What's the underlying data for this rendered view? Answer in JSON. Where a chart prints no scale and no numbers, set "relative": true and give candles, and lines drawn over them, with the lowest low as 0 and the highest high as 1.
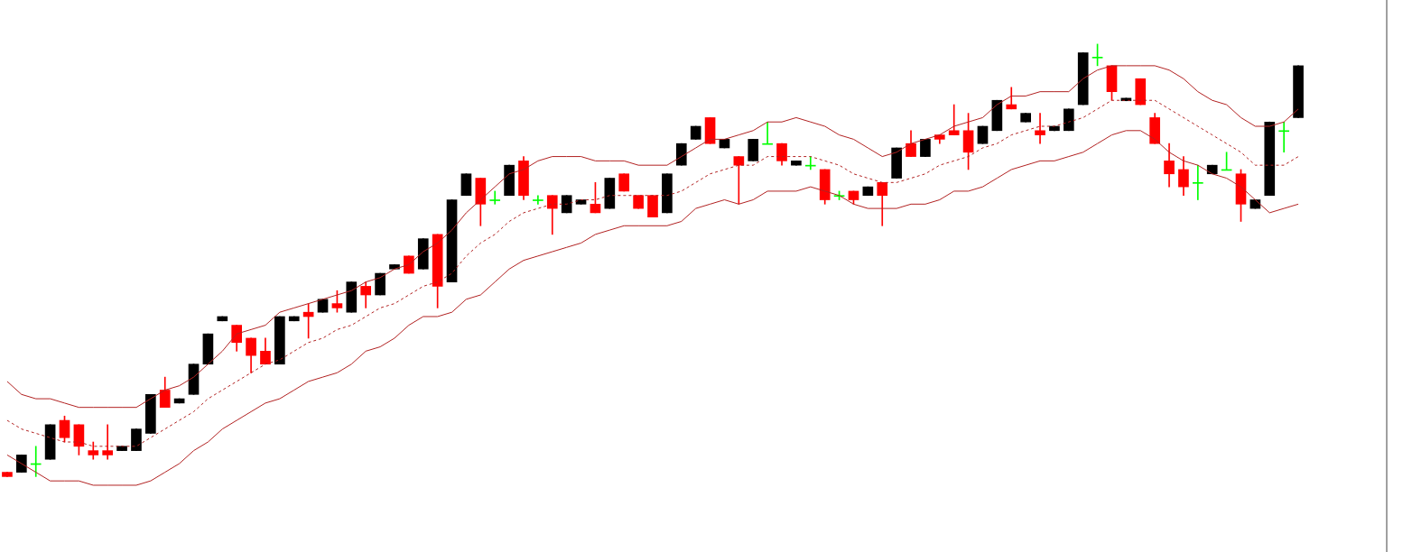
{
  "chart_data": {
    "type": "candlestick",
    "relative": true,
    "tick_labels": false,
    "marker": "none",
    "categories": [
      null,
      null,
      null,
      null,
      null,
      null,
      null,
      null,
      null,
      null,
      null,
      null,
      null,
      null,
      null,
      null,
      null,
      null,
      null,
      null,
      null,
      null,
      null,
      null,
      null,
      null,
      null,
      null,
      null,
      null,
      null,
      null,
      null,
      null,
      null,
      null,
      null,
      null,
      null,
      null,
      null,
      null,
      null,
      null,
      null,
      null,
      null,
      null,
      null,
      null,
      null,
      null,
      null,
      null,
      null,
      null,
      null,
      null,
      null,
      null,
      null,
      null,
      null,
      null,
      null,
      null,
      null,
      null,
      null,
      null,
      null,
      null,
      null,
      null,
      null,
      null,
      null,
      null,
      null,
      null,
      null,
      null,
      null,
      null,
      null,
      null,
      null,
      null,
      null,
      null,
      null
    ],
    "ohlc": [
      [
        0.01,
        0.01,
        0,
        0
      ],
      [
        0.01,
        0.05,
        0.01,
        0.05
      ],
      [
        0.03,
        0.07,
        0,
        0.03
      ],
      [
        0.04,
        0.12,
        0.04,
        0.12
      ],
      [
        0.13,
        0.14,
        0.08,
        0.09
      ],
      [
        0.12,
        0.12,
        0.05,
        0.07
      ],
      [
        0.06,
        0.08,
        0.04,
        0.05
      ],
      [
        0.06,
        0.12,
        0.04,
        0.05
      ],
      [
        0.06,
        0.07,
        0.06,
        0.07
      ],
      [
        0.06,
        0.11,
        0.06,
        0.11
      ],
      [
        0.1,
        0.19,
        0.1,
        0.19
      ],
      [
        0.2,
        0.23,
        0.16,
        0.16
      ],
      [
        0.17,
        0.18,
        0.17,
        0.18
      ],
      [
        0.19,
        0.26,
        0.19,
        0.26
      ],
      [
        0.26,
        0.33,
        0.26,
        0.33
      ],
      [
        0.36,
        0.37,
        0.36,
        0.37
      ],
      [
        0.35,
        0.35,
        0.29,
        0.31
      ],
      [
        0.32,
        0.32,
        0.24,
        0.28
      ],
      [
        0.29,
        0.32,
        0.26,
        0.26
      ],
      [
        0.26,
        0.37,
        0.26,
        0.37
      ],
      [
        0.36,
        0.37,
        0.36,
        0.37
      ],
      [
        0.38,
        0.4,
        0.32,
        0.37
      ],
      [
        0.38,
        0.41,
        0.38,
        0.41
      ],
      [
        0.4,
        0.43,
        0.38,
        0.39
      ],
      [
        0.38,
        0.45,
        0.38,
        0.45
      ],
      [
        0.44,
        0.45,
        0.39,
        0.42
      ],
      [
        0.42,
        0.47,
        0.42,
        0.47
      ],
      [
        0.48,
        0.49,
        0.48,
        0.49
      ],
      [
        0.51,
        0.51,
        0.47,
        0.47
      ],
      [
        0.48,
        0.55,
        0.48,
        0.55
      ],
      [
        0.56,
        0.56,
        0.39,
        0.44
      ],
      [
        0.45,
        0.64,
        0.45,
        0.64
      ],
      [
        0.65,
        0.7,
        0.65,
        0.7
      ],
      [
        0.69,
        0.69,
        0.58,
        0.63
      ],
      [
        0.64,
        0.66,
        0.63,
        0.64
      ],
      [
        0.65,
        0.72,
        0.65,
        0.72
      ],
      [
        0.73,
        0.74,
        0.64,
        0.65
      ],
      [
        0.64,
        0.65,
        0.63,
        0.64
      ],
      [
        0.65,
        0.65,
        0.56,
        0.62
      ],
      [
        0.61,
        0.65,
        0.61,
        0.65
      ],
      [
        0.63,
        0.64,
        0.63,
        0.64
      ],
      [
        0.63,
        0.68,
        0.61,
        0.61
      ],
      [
        0.62,
        0.69,
        0.62,
        0.69
      ],
      [
        0.7,
        0.7,
        0.66,
        0.66
      ],
      [
        0.65,
        0.65,
        0.62,
        0.62
      ],
      [
        0.65,
        0.65,
        0.6,
        0.6
      ],
      [
        0.61,
        0.7,
        0.61,
        0.7
      ],
      [
        0.72,
        0.77,
        0.72,
        0.77
      ],
      [
        0.78,
        0.81,
        0.78,
        0.81
      ],
      [
        0.83,
        0.83,
        0.77,
        0.77
      ],
      [
        0.76,
        0.78,
        0.76,
        0.78
      ],
      [
        0.74,
        0.74,
        0.63,
        0.72
      ],
      [
        0.73,
        0.78,
        0.73,
        0.78
      ],
      [
        0.77,
        0.82,
        0.77,
        0.77
      ],
      [
        0.77,
        0.77,
        0.72,
        0.73
      ],
      [
        0.72,
        0.73,
        0.72,
        0.73
      ],
      [
        0.72,
        0.74,
        0.71,
        0.72
      ],
      [
        0.71,
        0.71,
        0.63,
        0.64
      ],
      [
        0.65,
        0.66,
        0.64,
        0.65
      ],
      [
        0.66,
        0.66,
        0.63,
        0.64
      ],
      [
        0.65,
        0.67,
        0.65,
        0.67
      ],
      [
        0.68,
        0.68,
        0.58,
        0.65
      ],
      [
        0.69,
        0.76,
        0.69,
        0.76
      ],
      [
        0.77,
        0.8,
        0.74,
        0.74
      ],
      [
        0.74,
        0.78,
        0.74,
        0.78
      ],
      [
        0.79,
        0.79,
        0.77,
        0.78
      ],
      [
        0.8,
        0.86,
        0.79,
        0.79
      ],
      [
        0.8,
        0.84,
        0.71,
        0.75
      ],
      [
        0.77,
        0.81,
        0.77,
        0.81
      ],
      [
        0.8,
        0.87,
        0.8,
        0.87
      ],
      [
        0.86,
        0.9,
        0.85,
        0.85
      ],
      [
        0.82,
        0.84,
        0.82,
        0.84
      ],
      [
        0.8,
        0.84,
        0.77,
        0.79
      ],
      [
        0.8,
        0.81,
        0.8,
        0.81
      ],
      [
        0.8,
        0.85,
        0.8,
        0.85
      ],
      [
        0.86,
        0.98,
        0.86,
        0.98
      ],
      [
        0.97,
        1,
        0.95,
        0.97
      ],
      [
        0.95,
        0.95,
        0.87,
        0.89
      ],
      [
        0.869,
        0.875,
        0.869,
        0.875
      ],
      [
        0.92,
        0.92,
        0.86,
        0.86
      ],
      [
        0.83,
        0.84,
        0.77,
        0.77
      ],
      [
        0.73,
        0.77,
        0.67,
        0.7
      ],
      [
        0.71,
        0.74,
        0.65,
        0.67
      ],
      [
        0.68,
        0.72,
        0.64,
        0.68
      ],
      [
        0.7,
        0.72,
        0.7,
        0.72
      ],
      [
        0.71,
        0.75,
        0.71,
        0.71
      ],
      [
        0.7,
        0.71,
        0.59,
        0.63
      ],
      [
        0.62,
        0.64,
        0.62,
        0.64
      ],
      [
        0.65,
        0.82,
        0.65,
        0.82
      ],
      [
        0.8,
        0.82,
        0.75,
        0.8
      ],
      [
        0.83,
        0.95,
        0.83,
        0.95
      ]
    ],
    "colors": [
      "#ff0000",
      "#000000",
      "#00ff00",
      "#000000",
      "#ff0000",
      "#ff0000",
      "#ff0000",
      "#ff0000",
      "#000000",
      "#000000",
      "#000000",
      "#ff0000",
      "#000000",
      "#000000",
      "#000000",
      "#000000",
      "#ff0000",
      "#ff0000",
      "#ff0000",
      "#000000",
      "#000000",
      "#ff0000",
      "#000000",
      "#ff0000",
      "#000000",
      "#ff0000",
      "#000000",
      "#000000",
      "#ff0000",
      "#000000",
      "#ff0000",
      "#000000",
      "#000000",
      "#ff0000",
      "#00ff00",
      "#000000",
      "#ff0000",
      "#00ff00",
      "#ff0000",
      "#000000",
      "#000000",
      "#ff0000",
      "#000000",
      "#ff0000",
      "#ff0000",
      "#ff0000",
      "#000000",
      "#000000",
      "#000000",
      "#ff0000",
      "#000000",
      "#ff0000",
      "#000000",
      "#00ff00",
      "#ff0000",
      "#000000",
      "#00ff00",
      "#ff0000",
      "#00ff00",
      "#ff0000",
      "#000000",
      "#ff0000",
      "#000000",
      "#ff0000",
      "#000000",
      "#ff0000",
      "#ff0000",
      "#ff0000",
      "#000000",
      "#000000",
      "#ff0000",
      "#000000",
      "#ff0000",
      "#000000",
      "#000000",
      "#000000",
      "#00ff00",
      "#ff0000",
      "#000000",
      "#ff0000",
      "#ff0000",
      "#ff0000",
      "#ff0000",
      "#00ff00",
      "#000000",
      "#00ff00",
      "#ff0000",
      "#000000",
      "#000000",
      "#00ff00",
      "#000000"
    ],
    "series": [
      {
        "type": "line",
        "color": "#b22222",
        "line_style": "solid",
        "values": [
          0.22,
          0.19,
          0.18,
          0.18,
          0.17,
          0.16,
          0.16,
          0.16,
          0.16,
          0.16,
          0.18,
          0.2,
          0.21,
          0.23,
          0.26,
          0.29,
          0.33,
          0.34,
          0.35,
          0.38,
          0.39,
          0.4,
          0.41,
          0.42,
          0.43,
          0.45,
          0.46,
          0.48,
          0.49,
          0.52,
          0.54,
          0.57,
          0.61,
          0.64,
          0.67,
          0.7,
          0.71,
          0.73,
          0.74,
          0.74,
          0.74,
          0.73,
          0.73,
          0.73,
          0.72,
          0.72,
          0.72,
          0.74,
          0.76,
          0.78,
          0.78,
          0.79,
          0.8,
          0.82,
          0.82,
          0.83,
          0.82,
          0.81,
          0.79,
          0.78,
          0.76,
          0.74,
          0.75,
          0.77,
          0.78,
          0.79,
          0.81,
          0.82,
          0.83,
          0.86,
          0.88,
          0.88,
          0.89,
          0.89,
          0.89,
          0.92,
          0.94,
          0.95,
          0.95,
          0.95,
          0.95,
          0.94,
          0.92,
          0.89,
          0.87,
          0.86,
          0.83,
          0.81,
          0.81,
          0.82,
          0.85
        ]
      },
      {
        "type": "line",
        "color": "#b22222",
        "line_style": "dashed",
        "values": [
          0.13,
          0.11,
          0.1,
          0.09,
          0.08,
          0.08,
          0.07,
          0.07,
          0.07,
          0.07,
          0.09,
          0.11,
          0.13,
          0.15,
          0.18,
          0.2,
          0.22,
          0.24,
          0.26,
          0.27,
          0.29,
          0.31,
          0.32,
          0.34,
          0.35,
          0.37,
          0.39,
          0.4,
          0.42,
          0.44,
          0.45,
          0.47,
          0.51,
          0.54,
          0.56,
          0.59,
          0.61,
          0.62,
          0.63,
          0.63,
          0.64,
          0.64,
          0.65,
          0.65,
          0.65,
          0.65,
          0.65,
          0.66,
          0.68,
          0.7,
          0.71,
          0.72,
          0.72,
          0.74,
          0.74,
          0.74,
          0.74,
          0.73,
          0.72,
          0.7,
          0.69,
          0.68,
          0.68,
          0.69,
          0.7,
          0.72,
          0.73,
          0.74,
          0.76,
          0.77,
          0.79,
          0.8,
          0.81,
          0.81,
          0.82,
          0.83,
          0.85,
          0.87,
          0.87,
          0.87,
          0.87,
          0.85,
          0.83,
          0.81,
          0.79,
          0.77,
          0.75,
          0.72,
          0.72,
          0.72,
          0.74
        ]
      },
      {
        "type": "line",
        "color": "#b22222",
        "line_style": "solid",
        "values": [
          0.05,
          0.03,
          0.01,
          -0.01,
          -0.01,
          -0.01,
          -0.02,
          -0.02,
          -0.02,
          -0.02,
          -0.01,
          0.01,
          0.03,
          0.06,
          0.08,
          0.11,
          0.13,
          0.15,
          0.17,
          0.18,
          0.2,
          0.22,
          0.23,
          0.24,
          0.26,
          0.29,
          0.3,
          0.32,
          0.35,
          0.37,
          0.37,
          0.38,
          0.41,
          0.42,
          0.45,
          0.48,
          0.5,
          0.51,
          0.52,
          0.53,
          0.54,
          0.56,
          0.57,
          0.58,
          0.58,
          0.58,
          0.58,
          0.59,
          0.62,
          0.63,
          0.64,
          0.63,
          0.64,
          0.66,
          0.66,
          0.66,
          0.67,
          0.66,
          0.65,
          0.63,
          0.62,
          0.62,
          0.62,
          0.63,
          0.63,
          0.64,
          0.66,
          0.66,
          0.67,
          0.69,
          0.71,
          0.72,
          0.73,
          0.73,
          0.74,
          0.75,
          0.77,
          0.79,
          0.8,
          0.8,
          0.78,
          0.75,
          0.73,
          0.72,
          0.7,
          0.69,
          0.67,
          0.64,
          0.61,
          0.62,
          0.63
        ]
      }
    ]
  }
}
